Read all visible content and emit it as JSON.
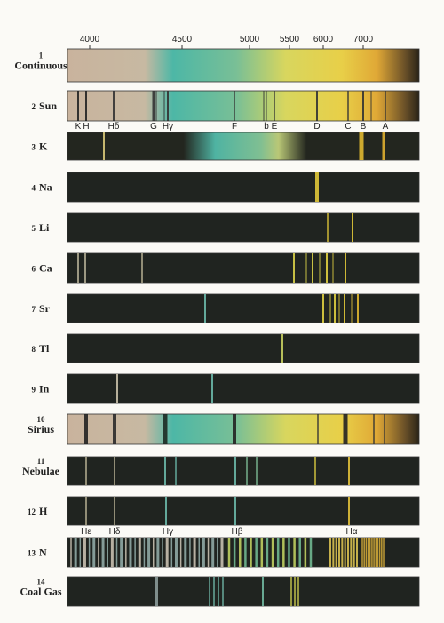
{
  "axis": {
    "ticks": [
      "4000",
      "4500",
      "5000",
      "5500",
      "6000",
      "7000"
    ]
  },
  "rows": [
    {
      "number": "1",
      "name": "Continuous"
    },
    {
      "number": "2",
      "name": "Sun"
    },
    {
      "number": "3",
      "name": "K"
    },
    {
      "number": "4",
      "name": "Na"
    },
    {
      "number": "5",
      "name": "Li"
    },
    {
      "number": "6",
      "name": "Ca"
    },
    {
      "number": "7",
      "name": "Sr"
    },
    {
      "number": "8",
      "name": "Tl"
    },
    {
      "number": "9",
      "name": "In"
    },
    {
      "number": "10",
      "name": "Sirius"
    },
    {
      "number": "11",
      "name": "Nebulae"
    },
    {
      "number": "12",
      "name": "H"
    },
    {
      "number": "13",
      "name": "N"
    },
    {
      "number": "14",
      "name": "Coal Gas"
    }
  ],
  "sun_lines": [
    "K",
    "H",
    "Hδ",
    "G",
    "Hγ",
    "F",
    "b",
    "E",
    "D",
    "C",
    "B",
    "A"
  ],
  "hydrogen_lines": [
    "Hε",
    "Hδ",
    "Hγ",
    "Hβ",
    "Hα"
  ]
}
